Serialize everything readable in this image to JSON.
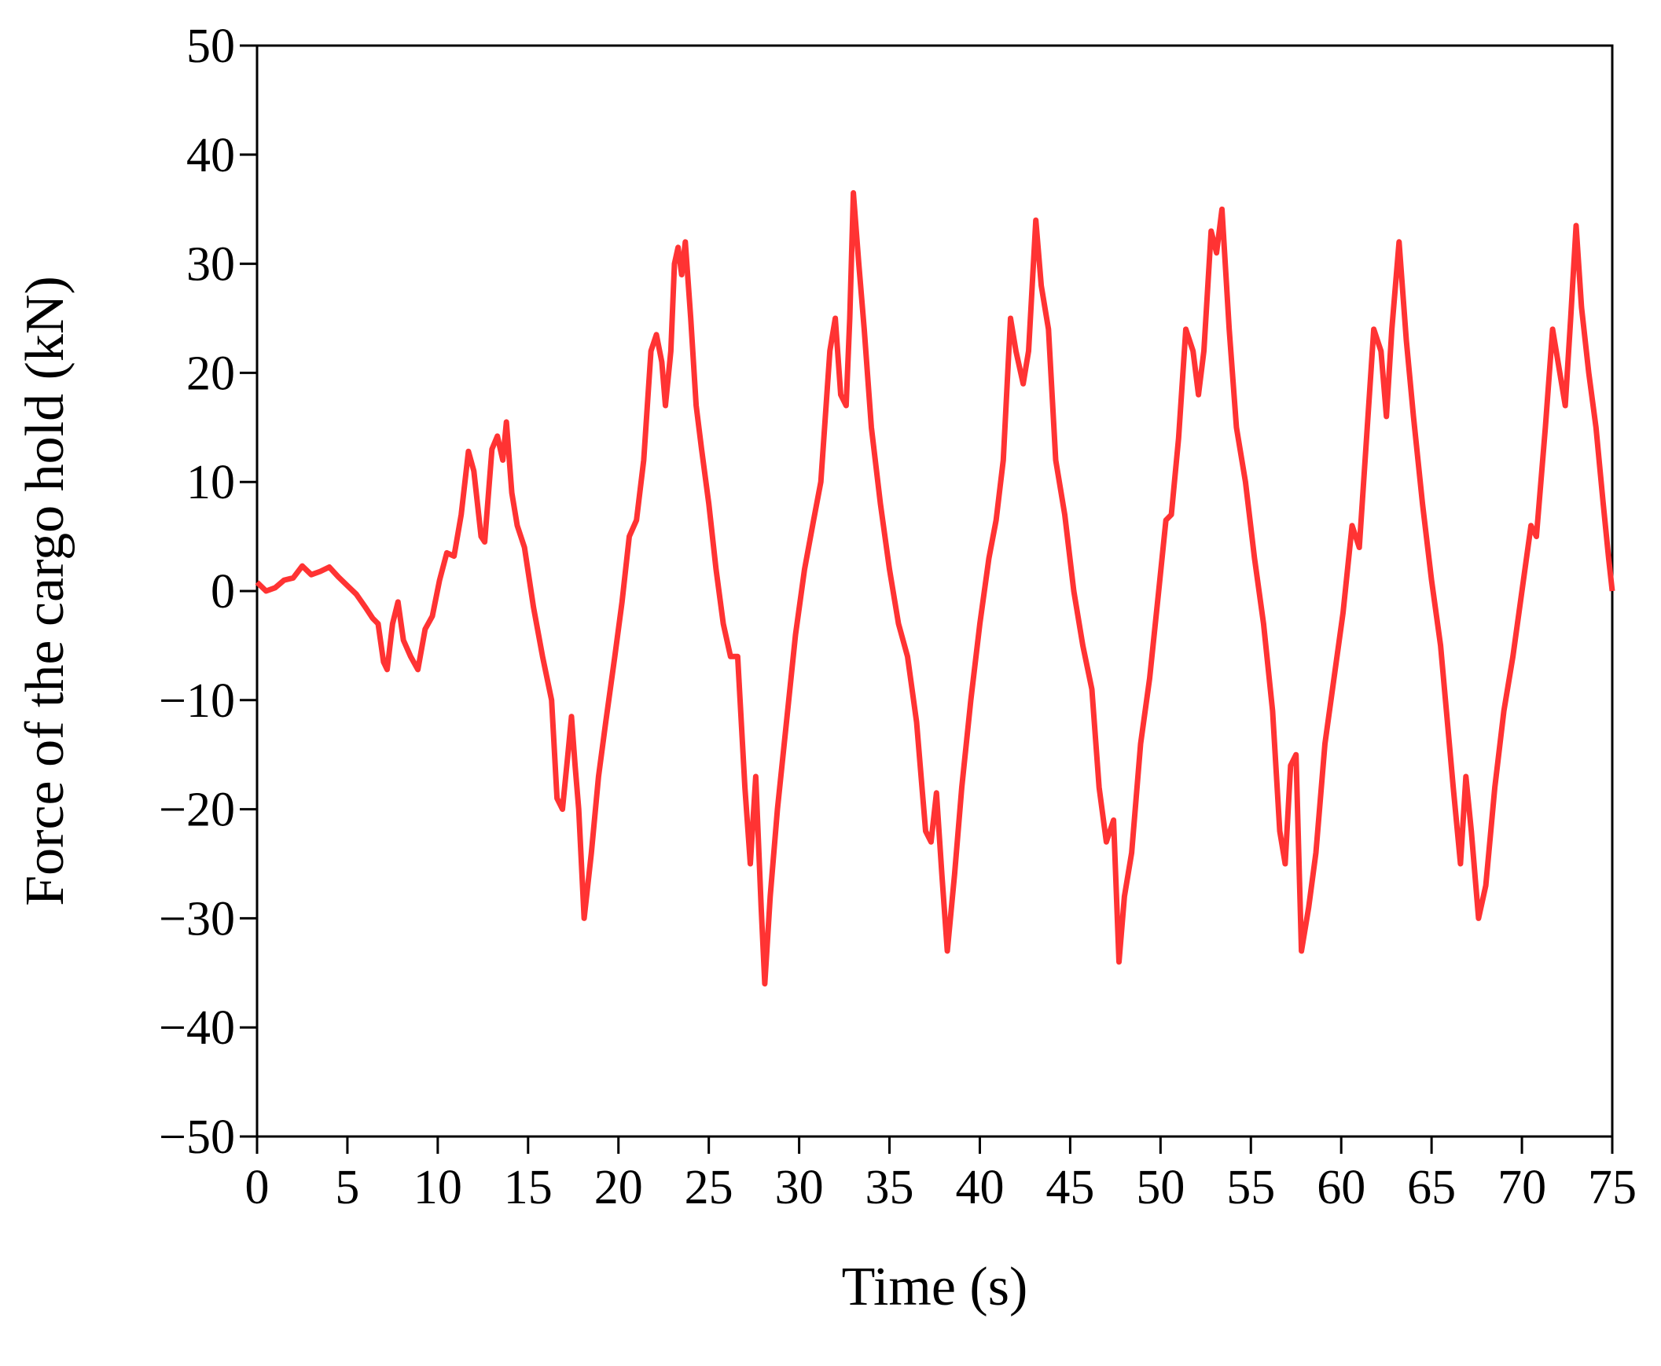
{
  "chart_data": {
    "type": "line",
    "x_label": "Time (s)",
    "y_label": "Force of the cargo hold (kN)",
    "xlim": [
      0,
      75
    ],
    "xticks": [
      0,
      5,
      10,
      15,
      20,
      25,
      30,
      35,
      40,
      45,
      50,
      55,
      60,
      65,
      70,
      75
    ],
    "ylim": [
      -50,
      50
    ],
    "yticks": [
      {
        "value": -50,
        "label": "−50"
      },
      {
        "value": -40,
        "label": "−40"
      },
      {
        "value": -30,
        "label": "−30"
      },
      {
        "value": -20,
        "label": "−20"
      },
      {
        "value": -10,
        "label": "−10"
      },
      0,
      10,
      20,
      30,
      40,
      50
    ],
    "grid": false,
    "x": [
      0,
      0.5,
      1,
      1.5,
      2,
      2.5,
      3,
      3.5,
      4,
      4.5,
      5,
      5.5,
      6,
      6.4,
      6.7,
      7,
      7.2,
      7.5,
      7.8,
      8.1,
      8.5,
      8.9,
      9.3,
      9.7,
      10.1,
      10.5,
      10.9,
      11.3,
      11.7,
      12,
      12.4,
      12.6,
      13,
      13.3,
      13.6,
      13.8,
      14.1,
      14.4,
      14.8,
      15.3,
      15.8,
      16.3,
      16.6,
      16.9,
      17.2,
      17.4,
      17.6,
      17.8,
      18.1,
      18.5,
      18.9,
      19.3,
      19.8,
      20.2,
      20.6,
      21,
      21.4,
      21.8,
      22.1,
      22.4,
      22.6,
      22.9,
      23.1,
      23.3,
      23.5,
      23.7,
      24,
      24.3,
      24.6,
      25,
      25.4,
      25.8,
      26.2,
      26.6,
      27,
      27.3,
      27.6,
      27.9,
      28.1,
      28.4,
      28.8,
      29.3,
      29.8,
      30.3,
      30.8,
      31.2,
      31.7,
      32,
      32.3,
      32.6,
      32.8,
      33,
      33.3,
      33.6,
      34,
      34.5,
      35,
      35.5,
      36,
      36.5,
      37,
      37.3,
      37.6,
      37.9,
      38.2,
      38.6,
      39,
      39.5,
      40,
      40.5,
      40.9,
      41.3,
      41.7,
      42,
      42.4,
      42.7,
      43.1,
      43.4,
      43.8,
      44.2,
      44.7,
      45.2,
      45.7,
      46.2,
      46.6,
      47,
      47.4,
      47.7,
      48,
      48.4,
      48.9,
      49.4,
      49.9,
      50.3,
      50.6,
      51,
      51.4,
      51.8,
      52.1,
      52.4,
      52.8,
      53.1,
      53.4,
      53.8,
      54.2,
      54.7,
      55.2,
      55.7,
      56.2,
      56.6,
      56.9,
      57.2,
      57.5,
      57.8,
      58.2,
      58.6,
      59.1,
      59.6,
      60.1,
      60.6,
      61,
      61.4,
      61.8,
      62.2,
      62.5,
      62.8,
      63.2,
      63.6,
      64,
      64.5,
      65,
      65.5,
      66.2,
      66.6,
      66.9,
      67.2,
      67.6,
      68,
      68.5,
      69,
      69.5,
      70,
      70.5,
      70.8,
      71.3,
      71.7,
      72.1,
      72.4,
      72.7,
      73,
      73.3,
      73.7,
      74.1,
      74.5,
      74.8,
      75
    ],
    "series": [
      {
        "color": "#ff3333",
        "values": [
          0.8,
          0,
          0.3,
          1,
          1.2,
          2.3,
          1.5,
          1.8,
          2.2,
          1.3,
          0.5,
          -0.3,
          -1.5,
          -2.5,
          -3,
          -6.5,
          -7.2,
          -3,
          -1,
          -4.5,
          -6,
          -7.2,
          -3.5,
          -2.3,
          1,
          3.5,
          3.2,
          7,
          12.8,
          11,
          5,
          4.5,
          13,
          14.2,
          12,
          15.5,
          9,
          6,
          4,
          -1.5,
          -6,
          -10,
          -19,
          -20,
          -15,
          -11.5,
          -16,
          -20,
          -30,
          -24,
          -17,
          -12,
          -6,
          -1,
          5,
          6.5,
          12,
          22,
          23.5,
          21,
          17,
          22,
          30,
          31.5,
          29,
          32,
          25,
          17,
          13,
          8,
          2,
          -3,
          -6,
          -6,
          -18,
          -25,
          -17,
          -29,
          -36,
          -28,
          -20,
          -12,
          -4,
          2,
          6.5,
          10,
          22,
          25,
          18,
          17,
          25,
          36.5,
          30,
          24,
          15,
          8,
          2,
          -3,
          -6,
          -12,
          -22,
          -23,
          -18.5,
          -26,
          -33,
          -26,
          -18,
          -10,
          -3,
          3,
          6.5,
          12,
          25,
          22,
          19,
          22,
          34,
          28,
          24,
          12,
          7,
          0,
          -5,
          -9,
          -18,
          -23,
          -21,
          -34,
          -28,
          -24,
          -14,
          -8,
          0,
          6.5,
          7,
          14,
          24,
          22,
          18,
          22,
          33,
          31,
          35,
          24,
          15,
          10,
          3,
          -3,
          -11,
          -22,
          -25,
          -16,
          -15,
          -33,
          -29,
          -24,
          -14,
          -8,
          -2,
          6,
          4,
          14,
          24,
          22,
          16,
          24,
          32,
          23,
          16,
          8,
          1,
          -5,
          -18,
          -25,
          -17,
          -22,
          -30,
          -27,
          -18,
          -11,
          -6,
          0,
          6,
          5,
          15,
          24,
          20,
          17,
          25,
          33.5,
          26,
          20,
          15,
          8,
          3,
          0
        ]
      }
    ]
  }
}
